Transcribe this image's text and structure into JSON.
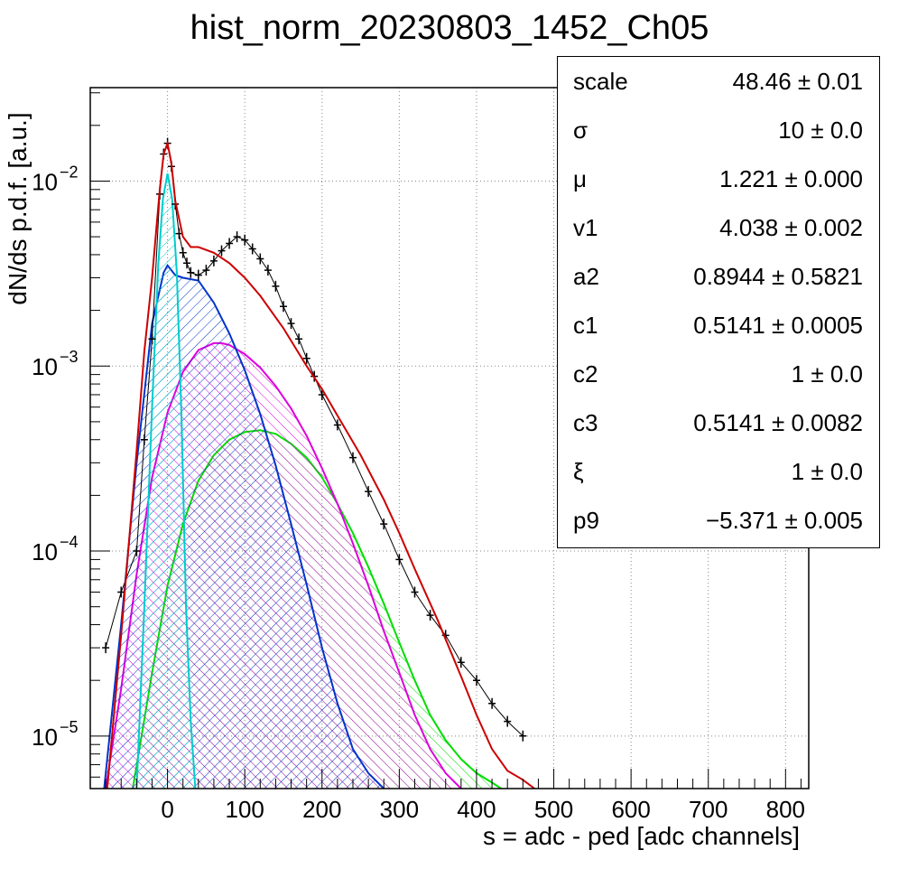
{
  "chart_data": {
    "type": "line",
    "title": "hist_norm_20230803_1452_Ch05",
    "xlabel": "s = adc - ped [adc channels]",
    "ylabel": "dN/ds p.d.f. [a.u.]",
    "xlim": [
      -100,
      830
    ],
    "ylim": [
      5.2e-06,
      0.032
    ],
    "yscale": "log",
    "grid": true,
    "x_ticks": [
      0,
      100,
      200,
      300,
      400,
      500,
      600,
      700,
      800
    ],
    "y_ticks": [
      {
        "value": 1e-05,
        "base": "10",
        "exp": "−5"
      },
      {
        "value": 0.0001,
        "base": "10",
        "exp": "−4"
      },
      {
        "value": 0.001,
        "base": "10",
        "exp": "−3"
      },
      {
        "value": 0.01,
        "base": "10",
        "exp": "−2"
      }
    ],
    "series": [
      {
        "color": "#000000",
        "kind": "histogram",
        "x": [
          -80,
          -60,
          -40,
          -30,
          -20,
          -10,
          -5,
          0,
          5,
          10,
          15,
          20,
          25,
          30,
          40,
          50,
          60,
          70,
          80,
          90,
          100,
          110,
          120,
          130,
          140,
          150,
          160,
          170,
          180,
          190,
          200,
          220,
          240,
          260,
          280,
          300,
          320,
          340,
          360,
          380,
          400,
          420,
          440,
          460
        ],
        "y": [
          3e-05,
          6e-05,
          0.0001,
          0.0004,
          0.0014,
          0.0085,
          0.014,
          0.016,
          0.012,
          0.0075,
          0.0052,
          0.0041,
          0.0036,
          0.0032,
          0.0031,
          0.0033,
          0.0037,
          0.0042,
          0.0046,
          0.005,
          0.0048,
          0.0043,
          0.0038,
          0.0033,
          0.0027,
          0.0021,
          0.0017,
          0.0014,
          0.0011,
          0.00088,
          0.0007,
          0.00048,
          0.00032,
          0.00021,
          0.00014,
          9e-05,
          6e-05,
          4.5e-05,
          3.5e-05,
          2.5e-05,
          2e-05,
          1.5e-05,
          1.2e-05,
          1e-05
        ]
      },
      {
        "color": "#cc0000",
        "kind": "line",
        "x": [
          -78,
          -60,
          -40,
          -30,
          -20,
          -10,
          -5,
          0,
          5,
          10,
          20,
          30,
          40,
          60,
          80,
          100,
          120,
          150,
          180,
          200,
          220,
          250,
          280,
          300,
          320,
          350,
          380,
          400,
          420,
          440,
          460,
          475
        ],
        "y": [
          5.2e-06,
          3.5e-05,
          0.00035,
          0.0012,
          0.003,
          0.009,
          0.014,
          0.016,
          0.0125,
          0.0078,
          0.005,
          0.0044,
          0.0044,
          0.0041,
          0.0036,
          0.003,
          0.0024,
          0.0016,
          0.001,
          0.00075,
          0.00054,
          0.00033,
          0.00019,
          0.000125,
          8e-05,
          4.2e-05,
          2.1e-05,
          1.3e-05,
          8.5e-06,
          6.5e-06,
          5.8e-06,
          5.2e-06
        ]
      },
      {
        "color": "#00cccc",
        "kind": "filled",
        "x": [
          -40,
          -30,
          -20,
          -12,
          -6,
          0,
          6,
          12,
          18,
          24,
          30,
          36
        ],
        "y": [
          5.2e-06,
          5e-05,
          0.0006,
          0.0035,
          0.008,
          0.011,
          0.008,
          0.0032,
          0.00055,
          5e-05,
          1.2e-05,
          5.2e-06
        ]
      },
      {
        "color": "#0033cc",
        "kind": "filled",
        "x": [
          -82,
          -60,
          -40,
          -20,
          -5,
          0,
          10,
          20,
          40,
          60,
          80,
          100,
          120,
          140,
          160,
          180,
          200,
          220,
          240,
          260,
          280
        ],
        "y": [
          5.2e-06,
          4e-05,
          0.0003,
          0.0017,
          0.0032,
          0.0035,
          0.0031,
          0.003,
          0.0029,
          0.0022,
          0.0015,
          0.00095,
          0.00055,
          0.00029,
          0.00014,
          6.6e-05,
          3e-05,
          1.5e-05,
          8.5e-06,
          6.3e-06,
          5.2e-06
        ]
      },
      {
        "color": "#dd00dd",
        "kind": "filled",
        "x": [
          -80,
          -60,
          -40,
          -20,
          0,
          20,
          40,
          60,
          70,
          80,
          100,
          120,
          140,
          160,
          180,
          200,
          220,
          240,
          260,
          280,
          300,
          320,
          340,
          360,
          380
        ],
        "y": [
          5.2e-06,
          1.8e-05,
          7.5e-05,
          0.00025,
          0.00056,
          0.00093,
          0.00122,
          0.00133,
          0.00133,
          0.0013,
          0.00116,
          0.00098,
          0.00078,
          0.00059,
          0.00042,
          0.00028,
          0.00018,
          0.00011,
          6.5e-05,
          3.7e-05,
          2.2e-05,
          1.3e-05,
          8.5e-06,
          6.3e-06,
          5.2e-06
        ]
      },
      {
        "color": "#00dd00",
        "kind": "filled",
        "x": [
          -45,
          -20,
          0,
          20,
          40,
          60,
          80,
          100,
          120,
          140,
          160,
          180,
          200,
          220,
          240,
          260,
          280,
          300,
          320,
          340,
          360,
          380,
          400,
          420,
          432
        ],
        "y": [
          5.2e-06,
          2.2e-05,
          6.5e-05,
          0.00014,
          0.00024,
          0.00033,
          0.0004,
          0.00044,
          0.00045,
          0.00043,
          0.00038,
          0.00032,
          0.00025,
          0.00018,
          0.000125,
          8.2e-05,
          5.2e-05,
          3.2e-05,
          2e-05,
          1.3e-05,
          9.5e-06,
          7.5e-06,
          6.3e-06,
          5.6e-06,
          5.2e-06
        ]
      }
    ]
  },
  "stats": [
    {
      "name": "scale",
      "value": "48.46 ± 0.01"
    },
    {
      "name": "σ",
      "value": "10 ± 0.0"
    },
    {
      "name": "μ",
      "value": "1.221 ± 0.000"
    },
    {
      "name": "v1",
      "value": "4.038 ± 0.002"
    },
    {
      "name": "a2",
      "value": "0.8944 ± 0.5821"
    },
    {
      "name": "c1",
      "value": "0.5141 ± 0.0005"
    },
    {
      "name": "c2",
      "value": "1 ± 0.0"
    },
    {
      "name": "c3",
      "value": "0.5141 ± 0.0082"
    },
    {
      "name": "ξ",
      "value": "1 ± 0.0"
    },
    {
      "name": "p9",
      "value": "−5.371 ± 0.005"
    }
  ]
}
